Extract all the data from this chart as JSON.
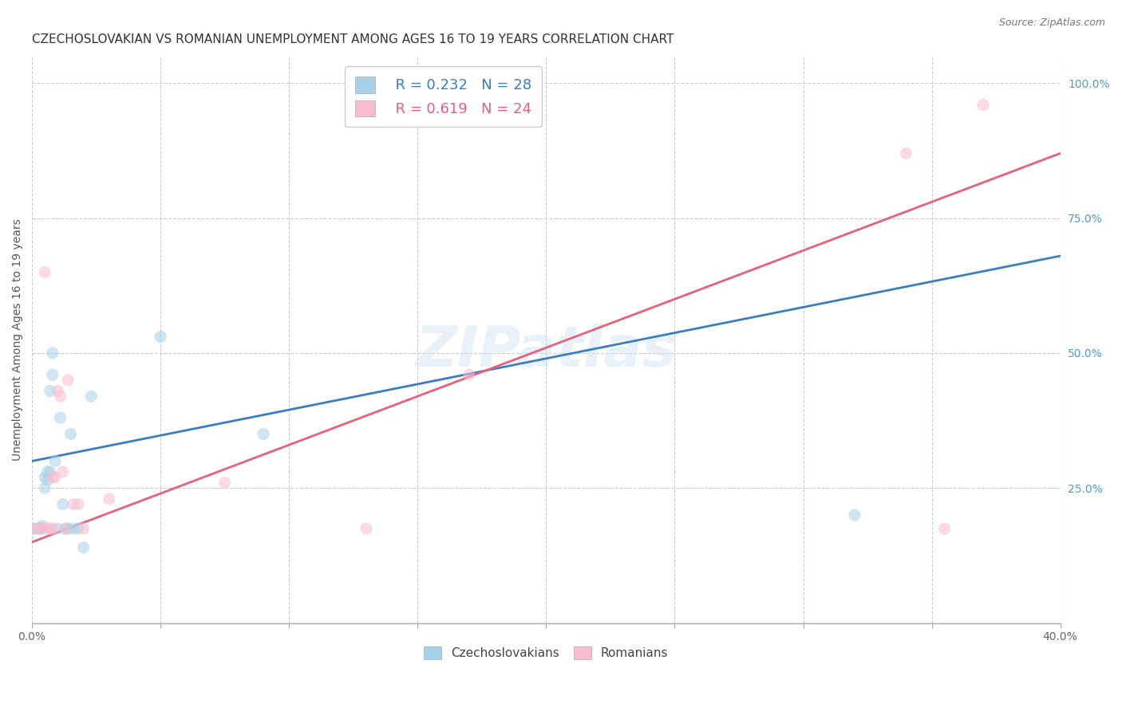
{
  "title": "CZECHOSLOVAKIAN VS ROMANIAN UNEMPLOYMENT AMONG AGES 16 TO 19 YEARS CORRELATION CHART",
  "source": "Source: ZipAtlas.com",
  "ylabel": "Unemployment Among Ages 16 to 19 years",
  "xlim": [
    0.0,
    0.4
  ],
  "ylim": [
    0.0,
    1.05
  ],
  "xticks": [
    0.0,
    0.05,
    0.1,
    0.15,
    0.2,
    0.25,
    0.3,
    0.35,
    0.4
  ],
  "xticklabels": [
    "0.0%",
    "",
    "",
    "",
    "",
    "",
    "",
    "",
    "40.0%"
  ],
  "yticks": [
    0.0,
    0.25,
    0.5,
    0.75,
    1.0
  ],
  "yticklabels": [
    "",
    "25.0%",
    "50.0%",
    "75.0%",
    "100.0%"
  ],
  "blue_R": 0.232,
  "blue_N": 28,
  "pink_R": 0.619,
  "pink_N": 24,
  "blue_color": "#a8d0e8",
  "pink_color": "#f8bdd0",
  "blue_line_color": "#3a7ebf",
  "pink_line_color": "#e8607a",
  "watermark": "ZIPatlas",
  "blue_scatter_x": [
    0.001,
    0.002,
    0.003,
    0.004,
    0.004,
    0.005,
    0.005,
    0.006,
    0.006,
    0.007,
    0.007,
    0.008,
    0.008,
    0.009,
    0.01,
    0.011,
    0.012,
    0.013,
    0.014,
    0.015,
    0.016,
    0.018,
    0.02,
    0.023,
    0.05,
    0.09,
    0.155,
    0.32
  ],
  "blue_scatter_y": [
    0.175,
    0.175,
    0.175,
    0.175,
    0.18,
    0.27,
    0.25,
    0.28,
    0.265,
    0.28,
    0.43,
    0.46,
    0.5,
    0.3,
    0.175,
    0.38,
    0.22,
    0.175,
    0.175,
    0.35,
    0.175,
    0.175,
    0.14,
    0.42,
    0.53,
    0.35,
    0.98,
    0.2
  ],
  "pink_scatter_x": [
    0.001,
    0.003,
    0.004,
    0.005,
    0.006,
    0.007,
    0.008,
    0.008,
    0.009,
    0.01,
    0.011,
    0.012,
    0.013,
    0.014,
    0.016,
    0.018,
    0.02,
    0.03,
    0.075,
    0.13,
    0.17,
    0.34,
    0.355,
    0.37
  ],
  "pink_scatter_y": [
    0.175,
    0.175,
    0.175,
    0.65,
    0.175,
    0.175,
    0.175,
    0.27,
    0.27,
    0.43,
    0.42,
    0.28,
    0.175,
    0.45,
    0.22,
    0.22,
    0.175,
    0.23,
    0.26,
    0.175,
    0.46,
    0.87,
    0.175,
    0.96
  ],
  "blue_trend_x": [
    0.0,
    0.4
  ],
  "blue_trend_y": [
    0.3,
    0.68
  ],
  "pink_trend_x": [
    0.0,
    0.4
  ],
  "pink_trend_y": [
    0.15,
    0.87
  ],
  "title_fontsize": 11,
  "axis_label_fontsize": 10,
  "tick_fontsize": 10,
  "legend_fontsize": 13,
  "scatter_size": 120,
  "marker_alpha": 0.55,
  "background_color": "#ffffff",
  "right_axis_color": "#5599cc",
  "gridline_color": "#cccccc",
  "gridline_style": "--"
}
